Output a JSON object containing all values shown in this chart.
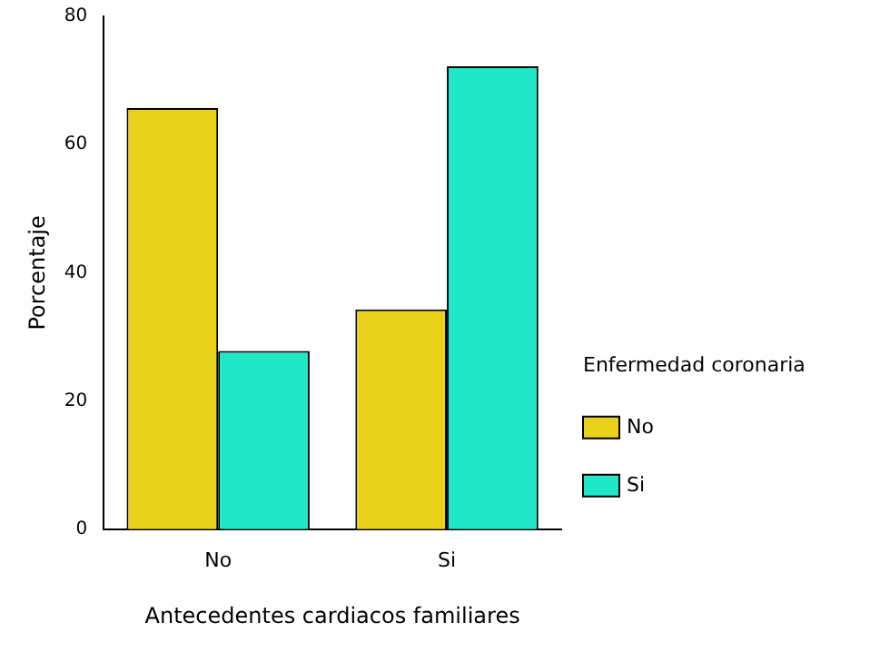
{
  "chart_data": {
    "type": "bar",
    "xlabel": "Antecedentes cardiacos familiares",
    "ylabel": "Porcentaje",
    "legend_title": "Enfermedad coronaria",
    "categories": [
      "No",
      "Si"
    ],
    "series": [
      {
        "name": "No",
        "color": "#e8d21c",
        "values": [
          65.7,
          34.3
        ]
      },
      {
        "name": "Si",
        "color": "#1ee8c8",
        "values": [
          27.8,
          72.2
        ]
      }
    ],
    "ylim": [
      0,
      80
    ],
    "yticks": [
      0,
      20,
      40,
      60,
      80
    ],
    "grid": false,
    "legend": "right"
  }
}
